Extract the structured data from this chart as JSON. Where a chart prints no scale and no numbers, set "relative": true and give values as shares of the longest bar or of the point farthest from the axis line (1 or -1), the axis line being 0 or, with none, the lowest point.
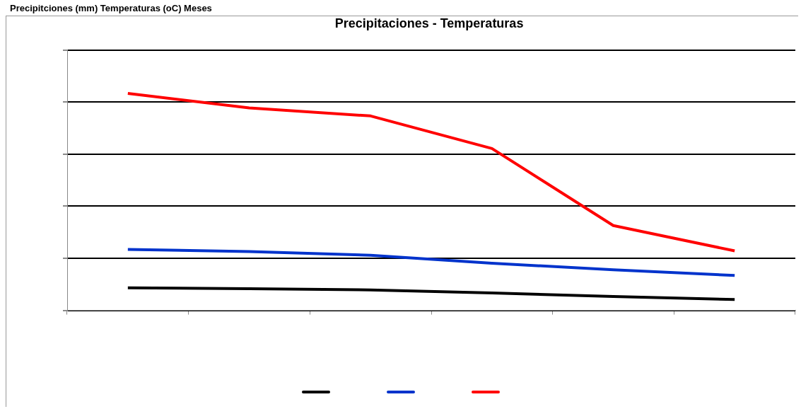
{
  "chart_data": {
    "type": "line",
    "title": "Precipitaciones - Temperaturas",
    "annotations": [
      "Precipitciones (mm) Temperaturas (oC) Meses"
    ],
    "relative": true,
    "categories": [
      null,
      null,
      null,
      null,
      null,
      null
    ],
    "grid": "y",
    "marker": "none",
    "line_style": "solid",
    "series": [
      {
        "color": "#000000",
        "values": [
          0.104,
          0.1,
          0.094,
          0.08,
          0.064,
          0.05
        ]
      },
      {
        "color": "#0033cc",
        "values": [
          0.281,
          0.271,
          0.254,
          0.217,
          0.187,
          0.161
        ]
      },
      {
        "color": "#ff0000",
        "values": [
          1,
          0.933,
          0.896,
          0.746,
          0.391,
          0.274
        ]
      }
    ]
  }
}
